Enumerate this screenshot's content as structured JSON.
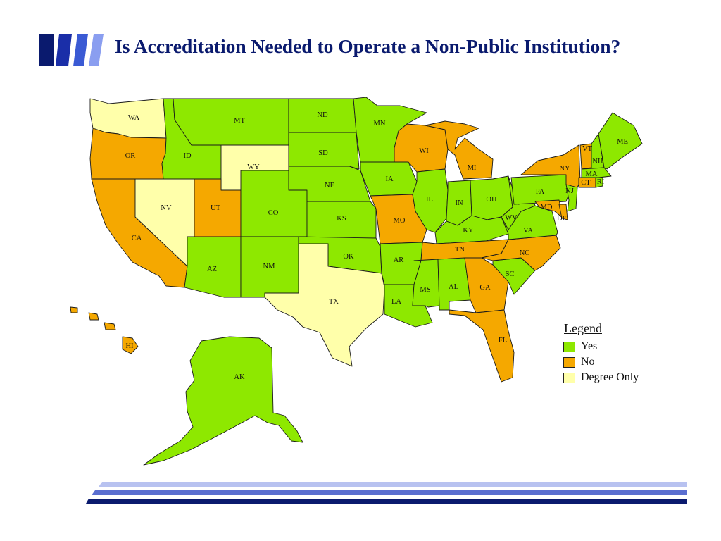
{
  "header": {
    "title": "Is Accreditation Needed to Operate a Non-Public Institution?",
    "bar_colors": [
      "#0a1a6e",
      "#1a2ea8",
      "#3a5ad4",
      "#8a9ef0"
    ]
  },
  "categories": {
    "yes": {
      "label": "Yes",
      "color": "#8ee800"
    },
    "no": {
      "label": "No",
      "color": "#f5a800"
    },
    "degree": {
      "label": "Degree Only",
      "color": "#ffffaa"
    }
  },
  "legend": {
    "title": "Legend",
    "items": [
      {
        "key": "yes",
        "label": "Yes",
        "color": "#8ee800"
      },
      {
        "key": "no",
        "label": "No",
        "color": "#f5a800"
      },
      {
        "key": "degree",
        "label": "Degree Only",
        "color": "#ffffaa"
      }
    ]
  },
  "states": {
    "WA": {
      "label": "WA",
      "status": "degree"
    },
    "OR": {
      "label": "OR",
      "status": "no"
    },
    "CA": {
      "label": "CA",
      "status": "no"
    },
    "NV": {
      "label": "NV",
      "status": "degree"
    },
    "ID": {
      "label": "ID",
      "status": "yes"
    },
    "MT": {
      "label": "MT",
      "status": "yes"
    },
    "WY": {
      "label": "WY",
      "status": "degree"
    },
    "UT": {
      "label": "UT",
      "status": "no"
    },
    "CO": {
      "label": "CO",
      "status": "yes"
    },
    "AZ": {
      "label": "AZ",
      "status": "yes"
    },
    "NM": {
      "label": "NM",
      "status": "yes"
    },
    "ND": {
      "label": "ND",
      "status": "yes"
    },
    "SD": {
      "label": "SD",
      "status": "yes"
    },
    "NE": {
      "label": "NE",
      "status": "yes"
    },
    "KS": {
      "label": "KS",
      "status": "yes"
    },
    "OK": {
      "label": "OK",
      "status": "yes"
    },
    "TX": {
      "label": "TX",
      "status": "degree"
    },
    "MN": {
      "label": "MN",
      "status": "yes"
    },
    "IA": {
      "label": "IA",
      "status": "yes"
    },
    "MO": {
      "label": "MO",
      "status": "no"
    },
    "AR": {
      "label": "AR",
      "status": "yes"
    },
    "LA": {
      "label": "LA",
      "status": "yes"
    },
    "WI": {
      "label": "WI",
      "status": "no"
    },
    "IL": {
      "label": "IL",
      "status": "yes"
    },
    "MI": {
      "label": "MI",
      "status": "no"
    },
    "IN": {
      "label": "IN",
      "status": "yes"
    },
    "OH": {
      "label": "OH",
      "status": "yes"
    },
    "KY": {
      "label": "KY",
      "status": "yes"
    },
    "TN": {
      "label": "TN",
      "status": "no"
    },
    "MS": {
      "label": "MS",
      "status": "yes"
    },
    "AL": {
      "label": "AL",
      "status": "yes"
    },
    "GA": {
      "label": "GA",
      "status": "no"
    },
    "FL": {
      "label": "FL",
      "status": "no"
    },
    "SC": {
      "label": "SC",
      "status": "yes"
    },
    "NC": {
      "label": "NC",
      "status": "no"
    },
    "VA": {
      "label": "VA",
      "status": "yes"
    },
    "WV": {
      "label": "WV",
      "status": "yes"
    },
    "PA": {
      "label": "PA",
      "status": "yes"
    },
    "NY": {
      "label": "NY",
      "status": "no"
    },
    "VT": {
      "label": "VT",
      "status": "no"
    },
    "NH": {
      "label": "NH",
      "status": "yes"
    },
    "ME": {
      "label": "ME",
      "status": "yes"
    },
    "MA": {
      "label": "MA",
      "status": "yes"
    },
    "CT": {
      "label": "CT",
      "status": "no"
    },
    "RI": {
      "label": "RI",
      "status": "yes"
    },
    "NJ": {
      "label": "NJ",
      "status": "yes"
    },
    "DE": {
      "label": "DE",
      "status": "no"
    },
    "MD": {
      "label": "MD",
      "status": "no"
    },
    "AK": {
      "label": "AK",
      "status": "yes"
    },
    "HI": {
      "label": "HI",
      "status": "no"
    }
  },
  "footer": {
    "line_colors": [
      "#b8c2f0",
      "#5a6ed0",
      "#0a1a6e"
    ]
  }
}
